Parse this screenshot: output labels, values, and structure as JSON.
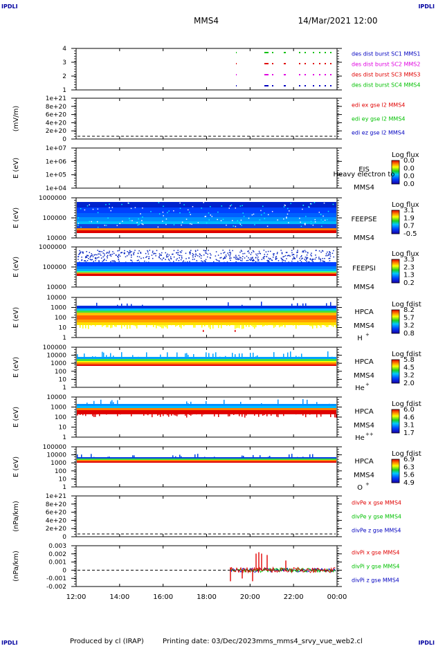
{
  "header": {
    "corner_tl": "IPDLI",
    "corner_tr": "IPDLI",
    "corner_bl": "IPDLI",
    "corner_br": "IPDLI",
    "spacecraft": "MMS4",
    "datetime": "14/Mar/2021 12:00"
  },
  "footer": {
    "produced_by": "Produced by cl (IRAP)",
    "printing_date": "Printing date: 03/Dec/2023",
    "script_name": "mms_mms4_srvy_vue_web2.cl"
  },
  "colors": {
    "red": "#e00000",
    "green": "#00c000",
    "blue": "#0000c0",
    "magenta": "#e000e0",
    "dark_blue": "#000080"
  },
  "chart_data": {
    "type": "heatmap",
    "x_ticks": [
      "12:00",
      "14:00",
      "16:00",
      "18:00",
      "20:00",
      "22:00",
      "00:00"
    ],
    "panels": [
      {
        "id": "des-burst",
        "type": "timeline",
        "ylabel": "",
        "ytick_labels": [
          "4",
          "3",
          "2",
          "1"
        ],
        "legend": [
          {
            "text": "des dist burst SC1 MMS1",
            "color": "#0000c0"
          },
          {
            "text": "des dist burst SC2 MMS2",
            "color": "#e000e0"
          },
          {
            "text": "des dist burst SC3 MMS3",
            "color": "#e00000"
          },
          {
            "text": "des dist burst SC4 MMS4",
            "color": "#00c000"
          }
        ]
      },
      {
        "id": "edi",
        "type": "line",
        "ylabel": "(mV/m)",
        "ytick_labels": [
          "1e+21",
          "8e+20",
          "6e+20",
          "4e+20",
          "2e+20",
          "0"
        ],
        "legend": [
          {
            "text": "edi ex gse l2 MMS4",
            "color": "#e00000"
          },
          {
            "text": "edi ey gse l2 MMS4",
            "color": "#00c000"
          },
          {
            "text": "edi ez gse l2 MMS4",
            "color": "#0000c0"
          }
        ]
      },
      {
        "id": "eis",
        "type": "heatmap",
        "ylabel": "E (eV)",
        "ytick_labels": [
          "1e+07",
          "1e+06",
          "1e+05",
          "1e+04"
        ],
        "instrument": "EIS",
        "species": "Heavy electron to",
        "sc": "MMS4",
        "cbar_title": "Log flux",
        "cbar_ticks": [
          "0.0",
          "0.0",
          "0.0",
          "0.0"
        ]
      },
      {
        "id": "feepse",
        "type": "heatmap",
        "ylabel": "E (eV)",
        "ytick_labels": [
          "1000000",
          "100000",
          "10000"
        ],
        "instrument": "FEEPSE",
        "sc": "MMS4",
        "cbar_title": "Log flux",
        "cbar_ticks": [
          "3.1",
          "1.9",
          "0.7",
          "-0.5"
        ]
      },
      {
        "id": "feepsi",
        "type": "heatmap",
        "ylabel": "E (eV)",
        "ytick_labels": [
          "1000000",
          "100000",
          "10000"
        ],
        "instrument": "FEEPSI",
        "sc": "MMS4",
        "cbar_title": "Log flux",
        "cbar_ticks": [
          "3.3",
          "2.3",
          "1.3",
          "0.2"
        ]
      },
      {
        "id": "hpca-h",
        "type": "heatmap",
        "ylabel": "E (eV)",
        "ytick_labels": [
          "10000",
          "1000",
          "100",
          "10",
          "1"
        ],
        "instrument": "HPCA",
        "sc": "MMS4",
        "species": "H",
        "charge": "+",
        "cbar_title": "Log fdist",
        "cbar_ticks": [
          "8.2",
          "5.7",
          "3.2",
          "0.8"
        ]
      },
      {
        "id": "hpca-he",
        "type": "heatmap",
        "ylabel": "E (eV)",
        "ytick_labels": [
          "100000",
          "10000",
          "1000",
          "100",
          "10",
          "1"
        ],
        "instrument": "HPCA",
        "sc": "MMS4",
        "species": "He",
        "charge": "+",
        "cbar_title": "Log fdist",
        "cbar_ticks": [
          "5.8",
          "4.5",
          "3.2",
          "2.0"
        ]
      },
      {
        "id": "hpca-he2",
        "type": "heatmap",
        "ylabel": "E (eV)",
        "ytick_labels": [
          "10000",
          "1000",
          "100",
          "10",
          "1"
        ],
        "instrument": "HPCA",
        "sc": "MMS4",
        "species": "He",
        "charge": "++",
        "cbar_title": "Log fdist",
        "cbar_ticks": [
          "6.0",
          "4.6",
          "3.1",
          "1.7"
        ]
      },
      {
        "id": "hpca-o",
        "type": "heatmap",
        "ylabel": "E (eV)",
        "ytick_labels": [
          "100000",
          "10000",
          "1000",
          "100",
          "10",
          "1"
        ],
        "instrument": "HPCA",
        "sc": "MMS4",
        "species": "O",
        "charge": "+",
        "cbar_title": "Log fdist",
        "cbar_ticks": [
          "6.9",
          "6.3",
          "5.6",
          "4.9"
        ]
      },
      {
        "id": "divpe",
        "type": "line",
        "ylabel": "(nPa/km)",
        "ytick_labels": [
          "1e+21",
          "8e+20",
          "6e+20",
          "4e+20",
          "2e+20",
          "0"
        ],
        "legend": [
          {
            "text": "divPe x gse MMS4",
            "color": "#e00000"
          },
          {
            "text": "divPe y gse MMS4",
            "color": "#00c000"
          },
          {
            "text": "divPe z gse MMS4",
            "color": "#0000c0"
          }
        ]
      },
      {
        "id": "divpi",
        "type": "line",
        "ylabel": "(nPa/km)",
        "ytick_labels": [
          "0.003",
          "0.002",
          "0.001",
          "0",
          "-0.001",
          "-0.002"
        ],
        "legend": [
          {
            "text": "divPi x gse MMS4",
            "color": "#e00000"
          },
          {
            "text": "divPi y gse MMS4",
            "color": "#00c000"
          },
          {
            "text": "divPi z gse MMS4",
            "color": "#0000c0"
          }
        ]
      }
    ]
  }
}
